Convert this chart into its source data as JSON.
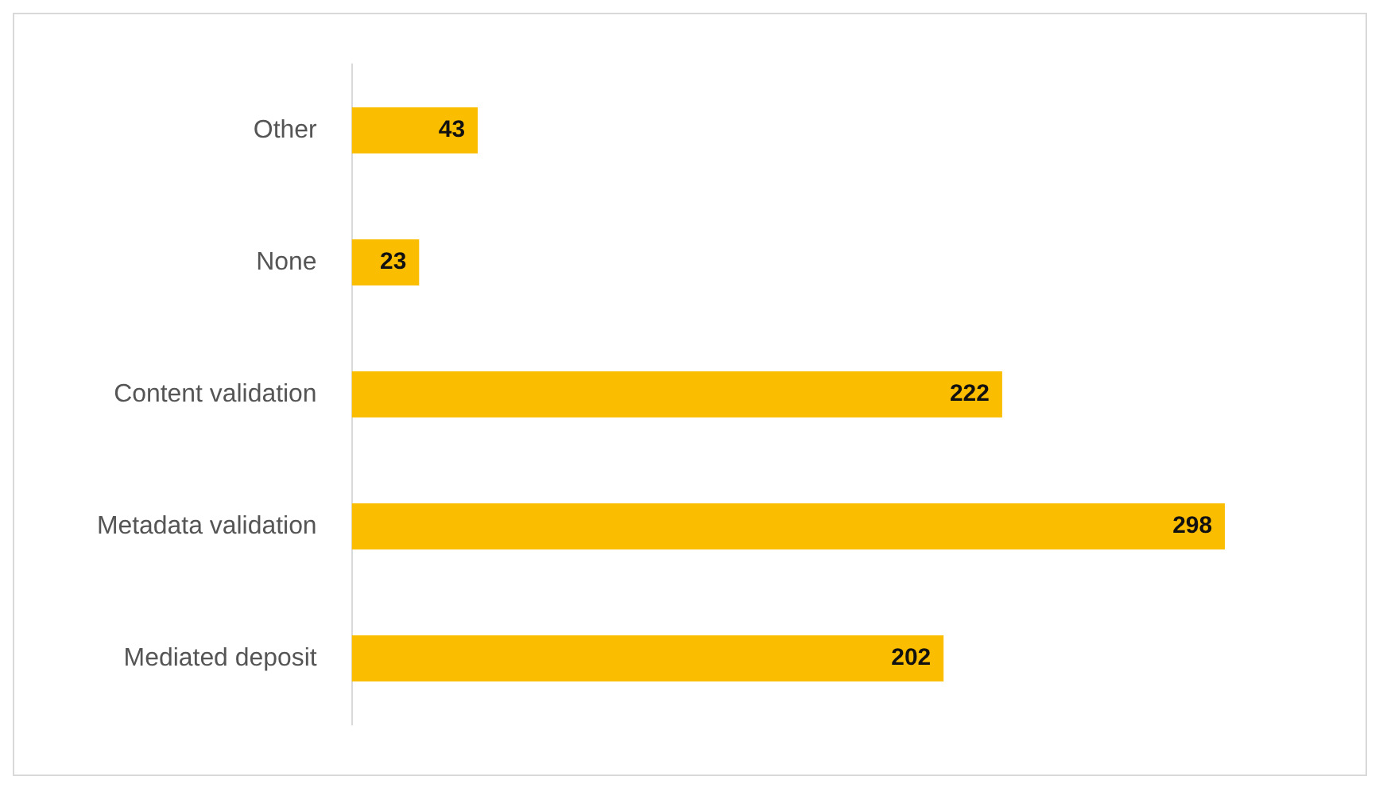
{
  "chart_data": {
    "type": "bar",
    "orientation": "horizontal",
    "categories": [
      "Other",
      "None",
      "Content validation",
      "Metadata validation",
      "Mediated deposit"
    ],
    "values": [
      43,
      23,
      222,
      298,
      202
    ],
    "color": "#fbbd00",
    "data_labels": true,
    "legend": false
  }
}
